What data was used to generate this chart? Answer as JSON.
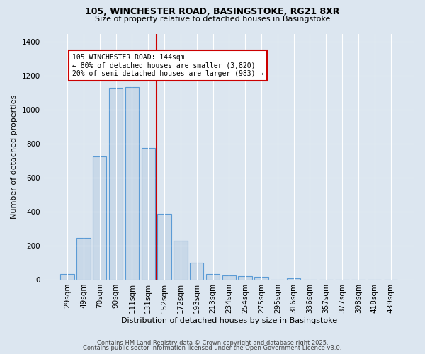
{
  "title": "105, WINCHESTER ROAD, BASINGSTOKE, RG21 8XR",
  "subtitle": "Size of property relative to detached houses in Basingstoke",
  "xlabel": "Distribution of detached houses by size in Basingstoke",
  "ylabel": "Number of detached properties",
  "categories": [
    "29sqm",
    "49sqm",
    "70sqm",
    "90sqm",
    "111sqm",
    "131sqm",
    "152sqm",
    "172sqm",
    "193sqm",
    "213sqm",
    "234sqm",
    "254sqm",
    "275sqm",
    "295sqm",
    "316sqm",
    "336sqm",
    "357sqm",
    "377sqm",
    "398sqm",
    "418sqm",
    "439sqm"
  ],
  "values": [
    35,
    245,
    725,
    1130,
    1135,
    775,
    390,
    230,
    100,
    35,
    25,
    20,
    15,
    0,
    10,
    0,
    0,
    0,
    0,
    0,
    0
  ],
  "bar_color": "#c8d8e8",
  "bar_edge_color": "#5b9bd5",
  "vline_x": 5.5,
  "vline_color": "#cc0000",
  "annotation_text": "105 WINCHESTER ROAD: 144sqm\n← 80% of detached houses are smaller (3,820)\n20% of semi-detached houses are larger (983) →",
  "annotation_box_color": "#ffffff",
  "annotation_box_edge": "#cc0000",
  "ylim": [
    0,
    1450
  ],
  "yticks": [
    0,
    200,
    400,
    600,
    800,
    1000,
    1200,
    1400
  ],
  "bg_color": "#dce6f0",
  "plot_bg_color": "#dce6f0",
  "footer1": "Contains HM Land Registry data © Crown copyright and database right 2025.",
  "footer2": "Contains public sector information licensed under the Open Government Licence v3.0.",
  "title_fontsize": 9,
  "subtitle_fontsize": 8
}
